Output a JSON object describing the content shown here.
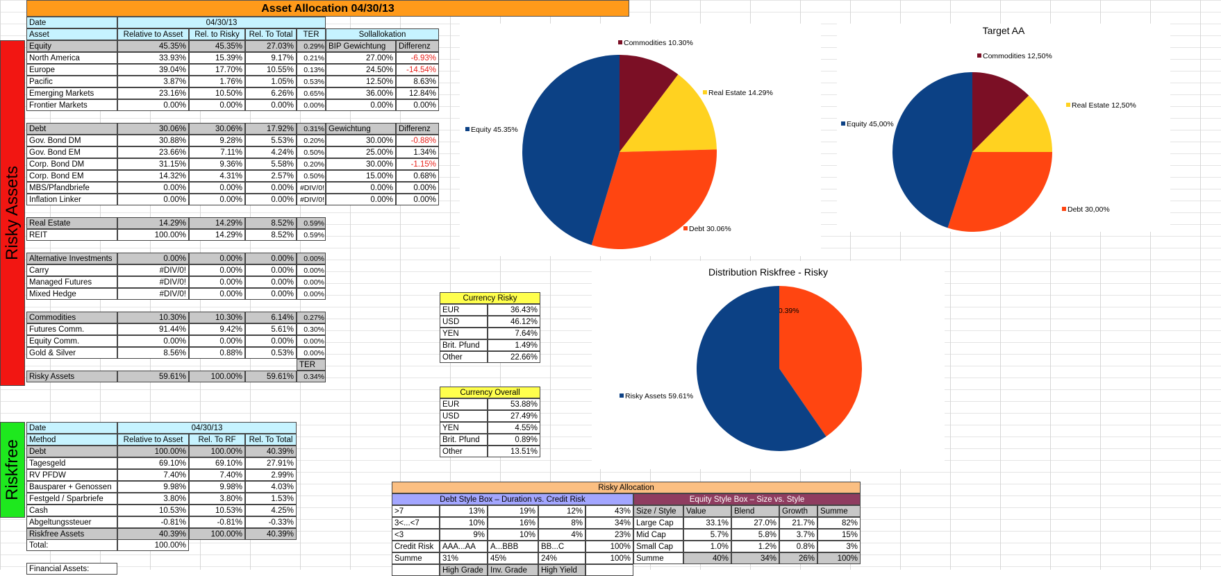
{
  "title": "Asset Allocation 04/30/13",
  "side_labels": {
    "risky": "Risky Assets",
    "riskfree": "Riskfree"
  },
  "risky": {
    "date_label": "Date",
    "date_value": "04/30/13",
    "headers": [
      "Asset",
      "Relative to Asset",
      "Rel. to Risky",
      "Rel. To Total",
      "TER",
      "Sollallokation"
    ],
    "groups": [
      {
        "name": "Equity",
        "values": [
          "45.35%",
          "45.35%",
          "27.03%",
          "0.29%"
        ],
        "extra": [
          "BIP Gewichtung",
          "Differenz"
        ],
        "rows": [
          {
            "name": "North America",
            "values": [
              "33.93%",
              "15.39%",
              "9.17%",
              "0.21%"
            ],
            "extra": [
              "27.00%",
              "-6.93%"
            ]
          },
          {
            "name": "Europe",
            "values": [
              "39.04%",
              "17.70%",
              "10.55%",
              "0.13%"
            ],
            "extra": [
              "24.50%",
              "-14.54%"
            ]
          },
          {
            "name": "Pacific",
            "values": [
              "3.87%",
              "1.76%",
              "1.05%",
              "0.53%"
            ],
            "extra": [
              "12.50%",
              "8.63%"
            ]
          },
          {
            "name": "Emerging Markets",
            "values": [
              "23.16%",
              "10.50%",
              "6.26%",
              "0.65%"
            ],
            "extra": [
              "36.00%",
              "12.84%"
            ]
          },
          {
            "name": "Frontier Markets",
            "values": [
              "0.00%",
              "0.00%",
              "0.00%",
              "0.00%"
            ],
            "extra": [
              "0.00%",
              "0.00%"
            ]
          }
        ]
      },
      {
        "name": "Debt",
        "values": [
          "30.06%",
          "30.06%",
          "17.92%",
          "0.31%"
        ],
        "extra": [
          "Gewichtung",
          "Differenz"
        ],
        "rows": [
          {
            "name": "Gov. Bond DM",
            "values": [
              "30.88%",
              "9.28%",
              "5.53%",
              "0.20%"
            ],
            "extra": [
              "30.00%",
              "-0.88%"
            ]
          },
          {
            "name": "Gov. Bond EM",
            "values": [
              "23.66%",
              "7.11%",
              "4.24%",
              "0.50%"
            ],
            "extra": [
              "25.00%",
              "1.34%"
            ]
          },
          {
            "name": "Corp. Bond DM",
            "values": [
              "31.15%",
              "9.36%",
              "5.58%",
              "0.20%"
            ],
            "extra": [
              "30.00%",
              "-1.15%"
            ]
          },
          {
            "name": "Corp. Bond EM",
            "values": [
              "14.32%",
              "4.31%",
              "2.57%",
              "0.50%"
            ],
            "extra": [
              "15.00%",
              "0.68%"
            ]
          },
          {
            "name": "MBS/Pfandbriefe",
            "values": [
              "0.00%",
              "0.00%",
              "0.00%",
              "#DIV/0!"
            ],
            "extra": [
              "0.00%",
              "0.00%"
            ]
          },
          {
            "name": "Inflation Linker",
            "values": [
              "0.00%",
              "0.00%",
              "0.00%",
              "#DIV/0!"
            ],
            "extra": [
              "0.00%",
              "0.00%"
            ]
          }
        ]
      },
      {
        "name": "Real Estate",
        "values": [
          "14.29%",
          "14.29%",
          "8.52%",
          "0.59%"
        ],
        "rows": [
          {
            "name": "REIT",
            "values": [
              "100.00%",
              "14.29%",
              "8.52%",
              "0.59%"
            ]
          }
        ]
      },
      {
        "name": "Alternative Investments",
        "values": [
          "0.00%",
          "0.00%",
          "0.00%",
          "0.00%"
        ],
        "rows": [
          {
            "name": "Carry",
            "values": [
              "#DIV/0!",
              "0.00%",
              "0.00%",
              "0.00%"
            ]
          },
          {
            "name": "Managed Futures",
            "values": [
              "#DIV/0!",
              "0.00%",
              "0.00%",
              "0.00%"
            ]
          },
          {
            "name": "Mixed Hedge",
            "values": [
              "#DIV/0!",
              "0.00%",
              "0.00%",
              "0.00%"
            ]
          }
        ]
      },
      {
        "name": "Commodities",
        "values": [
          "10.30%",
          "10.30%",
          "6.14%",
          "0.27%"
        ],
        "rows": [
          {
            "name": "Futures Comm.",
            "values": [
              "91.44%",
              "9.42%",
              "5.61%",
              "0.30%"
            ]
          },
          {
            "name": "Equity Comm.",
            "values": [
              "0.00%",
              "0.00%",
              "0.00%",
              "0.00%"
            ]
          },
          {
            "name": "Gold & Silver",
            "values": [
              "8.56%",
              "0.88%",
              "0.53%",
              "0.00%"
            ]
          }
        ]
      }
    ],
    "ter_label": "TER",
    "total": {
      "name": "Risky Assets",
      "values": [
        "59.61%",
        "100.00%",
        "59.61%",
        "0.34%"
      ]
    }
  },
  "riskfree": {
    "date_label": "Date",
    "date_value": "04/30/13",
    "headers": [
      "Method",
      "Relative to Asset",
      "Rel. To RF",
      "Rel. To Total"
    ],
    "group": {
      "name": "Debt",
      "values": [
        "100.00%",
        "100.00%",
        "40.39%"
      ]
    },
    "rows": [
      {
        "name": "Tagesgeld",
        "values": [
          "69.10%",
          "69.10%",
          "27.91%"
        ]
      },
      {
        "name": "RV PFDW",
        "values": [
          "7.40%",
          "7.40%",
          "2.99%"
        ]
      },
      {
        "name": "Bausparer + Genossen",
        "values": [
          "9.98%",
          "9.98%",
          "4.03%"
        ]
      },
      {
        "name": "Festgeld / Sparbriefe",
        "values": [
          "3.80%",
          "3.80%",
          "1.53%"
        ]
      },
      {
        "name": "Cash",
        "values": [
          "10.53%",
          "10.53%",
          "4.25%"
        ]
      },
      {
        "name": "Abgeltungssteuer",
        "values": [
          "-0.81%",
          "-0.81%",
          "-0.33%"
        ]
      }
    ],
    "total": {
      "name": "Riskfree Assets",
      "values": [
        "40.39%",
        "100.00%",
        "40.39%"
      ]
    }
  },
  "total_row": {
    "label": "Total:",
    "value": "100.00%"
  },
  "financial_label": "Financial Assets:",
  "currency_risky": {
    "title": "Currency Risky",
    "rows": [
      [
        "EUR",
        "36.43%"
      ],
      [
        "USD",
        "46.12%"
      ],
      [
        "YEN",
        "7.64%"
      ],
      [
        "Brit. Pfund",
        "1.49%"
      ],
      [
        "Other",
        "22.66%"
      ]
    ]
  },
  "currency_overall": {
    "title": "Currency Overall",
    "rows": [
      [
        "EUR",
        "53.88%"
      ],
      [
        "USD",
        "27.49%"
      ],
      [
        "YEN",
        "4.55%"
      ],
      [
        "Brit. Pfund",
        "0.89%"
      ],
      [
        "Other",
        "13.51%"
      ]
    ]
  },
  "risky_allocation": {
    "title": "Risky Allocation",
    "debt_box": {
      "title": "Debt Style Box – Duration vs. Credit Risk",
      "rows": [
        [
          ">7",
          "13%",
          "19%",
          "12%",
          "43%"
        ],
        [
          "3<...<7",
          "10%",
          "16%",
          "8%",
          "34%"
        ],
        [
          "<3",
          "9%",
          "10%",
          "4%",
          "23%"
        ],
        [
          "Credit Risk",
          "AAA...AA",
          "A...BBB",
          "BB...C",
          "100%"
        ],
        [
          "Summe",
          "31%",
          "45%",
          "24%",
          "100%"
        ],
        [
          "",
          "High Grade",
          "Inv. Grade",
          "High Yield",
          ""
        ]
      ]
    },
    "equity_box": {
      "title": "Equity Style Box – Size vs. Style",
      "rows": [
        [
          "Size / Style",
          "Value",
          "Blend",
          "Growth",
          "Summe"
        ],
        [
          "Large Cap",
          "33.1%",
          "27.0%",
          "21.7%",
          "82%"
        ],
        [
          "Mid Cap",
          "5.7%",
          "5.8%",
          "3.7%",
          "15%"
        ],
        [
          "Small Cap",
          "1.0%",
          "1.2%",
          "0.8%",
          "3%"
        ],
        [
          "Summe",
          "40%",
          "34%",
          "26%",
          "100%"
        ]
      ]
    }
  },
  "chart_data": [
    {
      "type": "pie",
      "title": "",
      "slices": [
        {
          "label": "Commodities 10.30%",
          "value": 10.3,
          "color": "#7b0f25"
        },
        {
          "label": "Real Estate 14.29%",
          "value": 14.29,
          "color": "#ffd220"
        },
        {
          "label": "Debt 30.06%",
          "value": 30.06,
          "color": "#ff4511"
        },
        {
          "label": "Equity 45.35%",
          "value": 45.35,
          "color": "#0c4185"
        }
      ]
    },
    {
      "type": "pie",
      "title": "Target AA",
      "slices": [
        {
          "label": "Commodities 12,50%",
          "value": 12.5,
          "color": "#7b0f25"
        },
        {
          "label": "Real Estate 12,50%",
          "value": 12.5,
          "color": "#ffd220"
        },
        {
          "label": "Debt 30,00%",
          "value": 30.0,
          "color": "#ff4511"
        },
        {
          "label": "Equity 45,00%",
          "value": 45.0,
          "color": "#0c4185"
        }
      ]
    },
    {
      "type": "pie",
      "title": "Distribution Riskfree - Risky",
      "slices": [
        {
          "label": "40.39%",
          "value": 40.39,
          "color": "#ff4511"
        },
        {
          "label": "Risky Assets 59.61%",
          "value": 59.61,
          "color": "#0c4185"
        }
      ]
    }
  ]
}
